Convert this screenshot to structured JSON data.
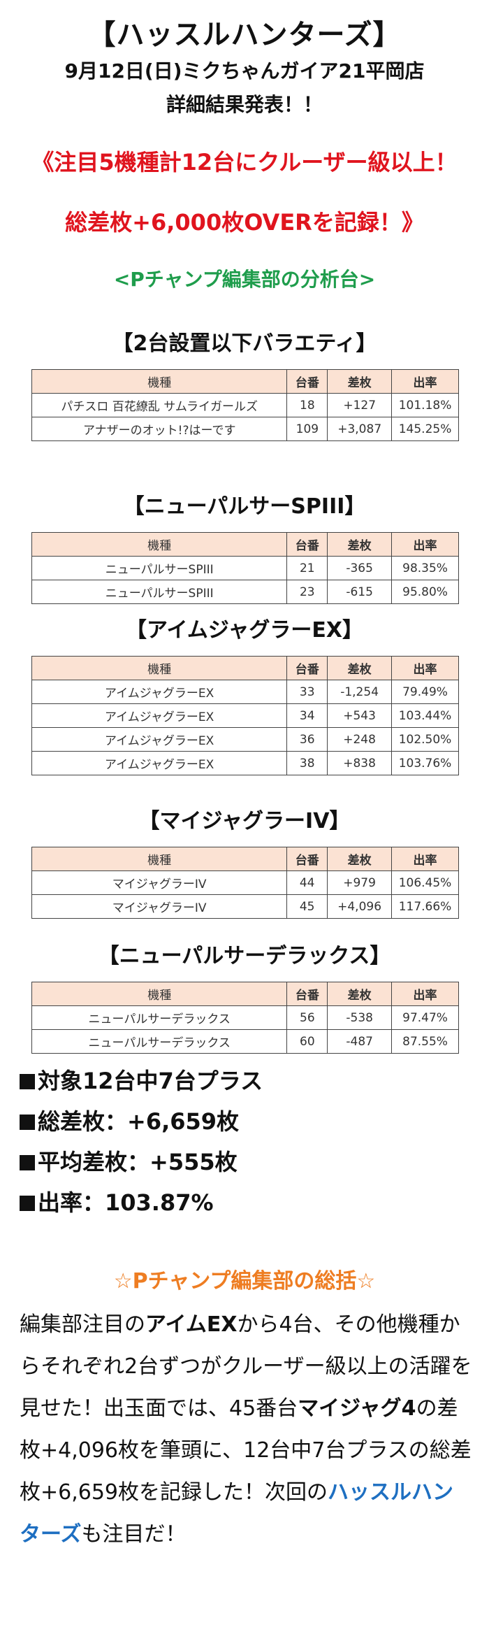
{
  "header": {
    "title": "【ハッスルハンターズ】",
    "line1": "9月12日(日)ミクちゃんガイア21平岡店",
    "line2": "詳細結果発表！！"
  },
  "headline": {
    "line1": "《注目5機種計12台にクルーザー級以上！",
    "line2": "総差枚+6,000枚OVERを記録！》"
  },
  "analysis_title": "<Pチャンプ編集部の分析台>",
  "table_headers": [
    "機種",
    "台番",
    "差枚",
    "出率"
  ],
  "sections": [
    {
      "title": "【2台設置以下バラエティ】",
      "rows": [
        [
          "パチスロ 百花繚乱 サムライガールズ",
          "18",
          "+127",
          "101.18%"
        ],
        [
          "アナザーのオット!?はーです",
          "109",
          "+3,087",
          "145.25%"
        ]
      ]
    },
    {
      "title": "【ニューパルサーSPIII】",
      "rows": [
        [
          "ニューパルサーSPIII",
          "21",
          "-365",
          "98.35%"
        ],
        [
          "ニューパルサーSPIII",
          "23",
          "-615",
          "95.80%"
        ]
      ]
    },
    {
      "title": "【アイムジャグラーEX】",
      "rows": [
        [
          "アイムジャグラーEX",
          "33",
          "-1,254",
          "79.49%"
        ],
        [
          "アイムジャグラーEX",
          "34",
          "+543",
          "103.44%"
        ],
        [
          "アイムジャグラーEX",
          "36",
          "+248",
          "102.50%"
        ],
        [
          "アイムジャグラーEX",
          "38",
          "+838",
          "103.76%"
        ]
      ]
    },
    {
      "title": "【マイジャグラーIV】",
      "rows": [
        [
          "マイジャグラーIV",
          "44",
          "+979",
          "106.45%"
        ],
        [
          "マイジャグラーIV",
          "45",
          "+4,096",
          "117.66%"
        ]
      ]
    },
    {
      "title": "【ニューパルサーデラックス】",
      "rows": [
        [
          "ニューパルサーデラックス",
          "56",
          "-538",
          "97.47%"
        ],
        [
          "ニューパルサーデラックス",
          "60",
          "-487",
          "87.55%"
        ]
      ]
    }
  ],
  "summary": [
    "対象12台中7台プラス",
    "総差枚：+6,659枚",
    "平均差枚：+555枚",
    "出率：103.87%"
  ],
  "closing": {
    "title": "☆Pチャンプ編集部の総括☆",
    "p1": "編集部注目の",
    "p1b": "アイムEX",
    "p2": "から4台、その他機種からそれぞれ2台ずつがクルーザー級以上の活躍を見せた！出玉面では、45番台",
    "p2b": "マイジャグ4",
    "p3": "の差枚+4,096枚を筆頭に、12台中7台プラスの総差枚+6,659枚を記録した！次回の",
    "p3b": "ハッスルハンターズ",
    "p4": "も注目だ！"
  },
  "colors": {
    "headline": "#e0141e",
    "analysis": "#1f9d4c",
    "closing_title": "#ee7d22",
    "link_blue": "#1e6fc1",
    "table_header_bg": "#fbe2d3"
  }
}
